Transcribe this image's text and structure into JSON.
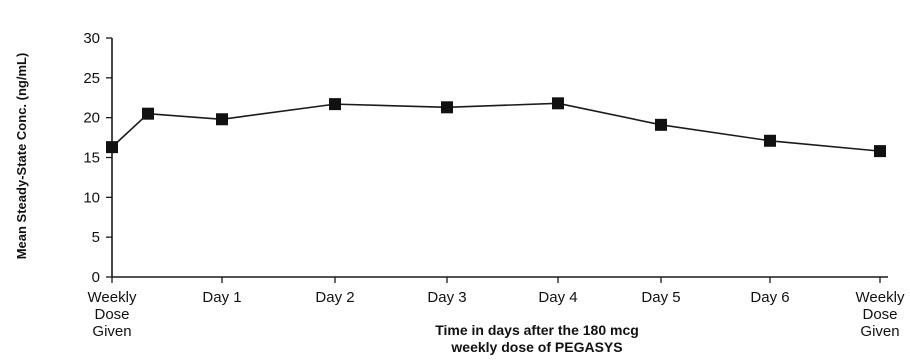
{
  "chart_data": {
    "type": "line",
    "title": "",
    "xlabel": "Time in days after the 180 mcg weekly dose of PEGASYS",
    "xlabel_lines": [
      "Time in days after the 180 mcg",
      "weekly dose of PEGASYS"
    ],
    "ylabel": "Mean Steady-State Conc. (ng/mL)",
    "ylim": [
      0,
      30
    ],
    "yticks": [
      "0",
      "5",
      "10",
      "15",
      "20",
      "25",
      "30"
    ],
    "ytick_values": [
      0,
      5,
      10,
      15,
      20,
      25,
      30
    ],
    "categories": [
      "Weekly Dose Given",
      "",
      "Day 1",
      "Day 2",
      "Day 3",
      "Day 4",
      "Day 5",
      "Day 6",
      "Weekly Dose Given"
    ],
    "category_labels": [
      [
        "Weekly",
        "Dose",
        "Given"
      ],
      [
        "Day 1"
      ],
      [
        "Day 2"
      ],
      [
        "Day 3"
      ],
      [
        "Day 4"
      ],
      [
        "Day 5"
      ],
      [
        "Day 6"
      ],
      [
        "Weekly",
        "Dose",
        "Given"
      ]
    ],
    "x": [
      0,
      0.33,
      1,
      2,
      3,
      4,
      5,
      6,
      7
    ],
    "series": [
      {
        "values": [
          16.3,
          20.5,
          19.8,
          21.7,
          21.3,
          21.8,
          19.1,
          17.1,
          15.8
        ]
      }
    ],
    "marker": "square",
    "grid": false,
    "colors": {
      "line": "#1a1a1a",
      "marker": "#111111",
      "axis": "#1a1a1a"
    }
  }
}
